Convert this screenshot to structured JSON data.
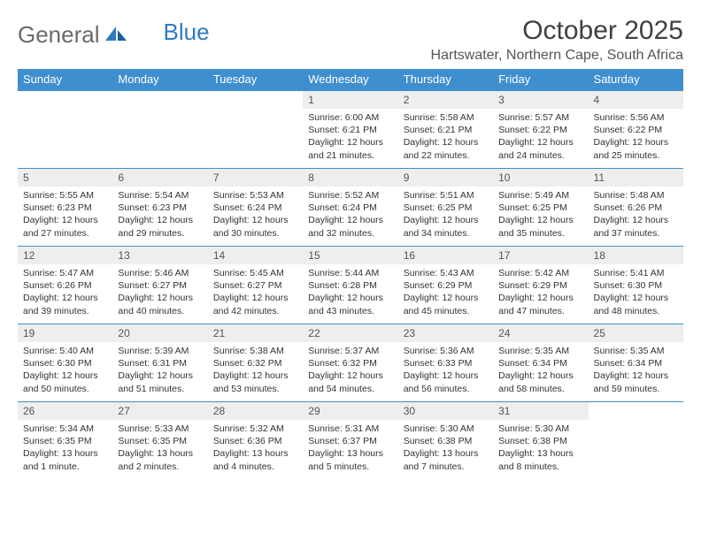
{
  "brand": {
    "part1": "General",
    "part2": "Blue"
  },
  "title": "October 2025",
  "location": "Hartswater, Northern Cape, South Africa",
  "colors": {
    "header_bg": "#3f8fcf",
    "header_text": "#ffffff",
    "daynum_bg": "#eeeeee",
    "border": "#3f8fcf",
    "page_bg": "#ffffff",
    "text": "#333333",
    "logo_gray": "#6a6a6a",
    "logo_blue": "#2d7cc0"
  },
  "day_names": [
    "Sunday",
    "Monday",
    "Tuesday",
    "Wednesday",
    "Thursday",
    "Friday",
    "Saturday"
  ],
  "weeks": [
    [
      {
        "n": "",
        "sunrise": "",
        "sunset": "",
        "daylight": "",
        "empty": true
      },
      {
        "n": "",
        "sunrise": "",
        "sunset": "",
        "daylight": "",
        "empty": true
      },
      {
        "n": "",
        "sunrise": "",
        "sunset": "",
        "daylight": "",
        "empty": true
      },
      {
        "n": "1",
        "sunrise": "Sunrise: 6:00 AM",
        "sunset": "Sunset: 6:21 PM",
        "daylight": "Daylight: 12 hours and 21 minutes."
      },
      {
        "n": "2",
        "sunrise": "Sunrise: 5:58 AM",
        "sunset": "Sunset: 6:21 PM",
        "daylight": "Daylight: 12 hours and 22 minutes."
      },
      {
        "n": "3",
        "sunrise": "Sunrise: 5:57 AM",
        "sunset": "Sunset: 6:22 PM",
        "daylight": "Daylight: 12 hours and 24 minutes."
      },
      {
        "n": "4",
        "sunrise": "Sunrise: 5:56 AM",
        "sunset": "Sunset: 6:22 PM",
        "daylight": "Daylight: 12 hours and 25 minutes."
      }
    ],
    [
      {
        "n": "5",
        "sunrise": "Sunrise: 5:55 AM",
        "sunset": "Sunset: 6:23 PM",
        "daylight": "Daylight: 12 hours and 27 minutes."
      },
      {
        "n": "6",
        "sunrise": "Sunrise: 5:54 AM",
        "sunset": "Sunset: 6:23 PM",
        "daylight": "Daylight: 12 hours and 29 minutes."
      },
      {
        "n": "7",
        "sunrise": "Sunrise: 5:53 AM",
        "sunset": "Sunset: 6:24 PM",
        "daylight": "Daylight: 12 hours and 30 minutes."
      },
      {
        "n": "8",
        "sunrise": "Sunrise: 5:52 AM",
        "sunset": "Sunset: 6:24 PM",
        "daylight": "Daylight: 12 hours and 32 minutes."
      },
      {
        "n": "9",
        "sunrise": "Sunrise: 5:51 AM",
        "sunset": "Sunset: 6:25 PM",
        "daylight": "Daylight: 12 hours and 34 minutes."
      },
      {
        "n": "10",
        "sunrise": "Sunrise: 5:49 AM",
        "sunset": "Sunset: 6:25 PM",
        "daylight": "Daylight: 12 hours and 35 minutes."
      },
      {
        "n": "11",
        "sunrise": "Sunrise: 5:48 AM",
        "sunset": "Sunset: 6:26 PM",
        "daylight": "Daylight: 12 hours and 37 minutes."
      }
    ],
    [
      {
        "n": "12",
        "sunrise": "Sunrise: 5:47 AM",
        "sunset": "Sunset: 6:26 PM",
        "daylight": "Daylight: 12 hours and 39 minutes."
      },
      {
        "n": "13",
        "sunrise": "Sunrise: 5:46 AM",
        "sunset": "Sunset: 6:27 PM",
        "daylight": "Daylight: 12 hours and 40 minutes."
      },
      {
        "n": "14",
        "sunrise": "Sunrise: 5:45 AM",
        "sunset": "Sunset: 6:27 PM",
        "daylight": "Daylight: 12 hours and 42 minutes."
      },
      {
        "n": "15",
        "sunrise": "Sunrise: 5:44 AM",
        "sunset": "Sunset: 6:28 PM",
        "daylight": "Daylight: 12 hours and 43 minutes."
      },
      {
        "n": "16",
        "sunrise": "Sunrise: 5:43 AM",
        "sunset": "Sunset: 6:29 PM",
        "daylight": "Daylight: 12 hours and 45 minutes."
      },
      {
        "n": "17",
        "sunrise": "Sunrise: 5:42 AM",
        "sunset": "Sunset: 6:29 PM",
        "daylight": "Daylight: 12 hours and 47 minutes."
      },
      {
        "n": "18",
        "sunrise": "Sunrise: 5:41 AM",
        "sunset": "Sunset: 6:30 PM",
        "daylight": "Daylight: 12 hours and 48 minutes."
      }
    ],
    [
      {
        "n": "19",
        "sunrise": "Sunrise: 5:40 AM",
        "sunset": "Sunset: 6:30 PM",
        "daylight": "Daylight: 12 hours and 50 minutes."
      },
      {
        "n": "20",
        "sunrise": "Sunrise: 5:39 AM",
        "sunset": "Sunset: 6:31 PM",
        "daylight": "Daylight: 12 hours and 51 minutes."
      },
      {
        "n": "21",
        "sunrise": "Sunrise: 5:38 AM",
        "sunset": "Sunset: 6:32 PM",
        "daylight": "Daylight: 12 hours and 53 minutes."
      },
      {
        "n": "22",
        "sunrise": "Sunrise: 5:37 AM",
        "sunset": "Sunset: 6:32 PM",
        "daylight": "Daylight: 12 hours and 54 minutes."
      },
      {
        "n": "23",
        "sunrise": "Sunrise: 5:36 AM",
        "sunset": "Sunset: 6:33 PM",
        "daylight": "Daylight: 12 hours and 56 minutes."
      },
      {
        "n": "24",
        "sunrise": "Sunrise: 5:35 AM",
        "sunset": "Sunset: 6:34 PM",
        "daylight": "Daylight: 12 hours and 58 minutes."
      },
      {
        "n": "25",
        "sunrise": "Sunrise: 5:35 AM",
        "sunset": "Sunset: 6:34 PM",
        "daylight": "Daylight: 12 hours and 59 minutes."
      }
    ],
    [
      {
        "n": "26",
        "sunrise": "Sunrise: 5:34 AM",
        "sunset": "Sunset: 6:35 PM",
        "daylight": "Daylight: 13 hours and 1 minute."
      },
      {
        "n": "27",
        "sunrise": "Sunrise: 5:33 AM",
        "sunset": "Sunset: 6:35 PM",
        "daylight": "Daylight: 13 hours and 2 minutes."
      },
      {
        "n": "28",
        "sunrise": "Sunrise: 5:32 AM",
        "sunset": "Sunset: 6:36 PM",
        "daylight": "Daylight: 13 hours and 4 minutes."
      },
      {
        "n": "29",
        "sunrise": "Sunrise: 5:31 AM",
        "sunset": "Sunset: 6:37 PM",
        "daylight": "Daylight: 13 hours and 5 minutes."
      },
      {
        "n": "30",
        "sunrise": "Sunrise: 5:30 AM",
        "sunset": "Sunset: 6:38 PM",
        "daylight": "Daylight: 13 hours and 7 minutes."
      },
      {
        "n": "31",
        "sunrise": "Sunrise: 5:30 AM",
        "sunset": "Sunset: 6:38 PM",
        "daylight": "Daylight: 13 hours and 8 minutes."
      },
      {
        "n": "",
        "sunrise": "",
        "sunset": "",
        "daylight": "",
        "empty": true
      }
    ]
  ]
}
